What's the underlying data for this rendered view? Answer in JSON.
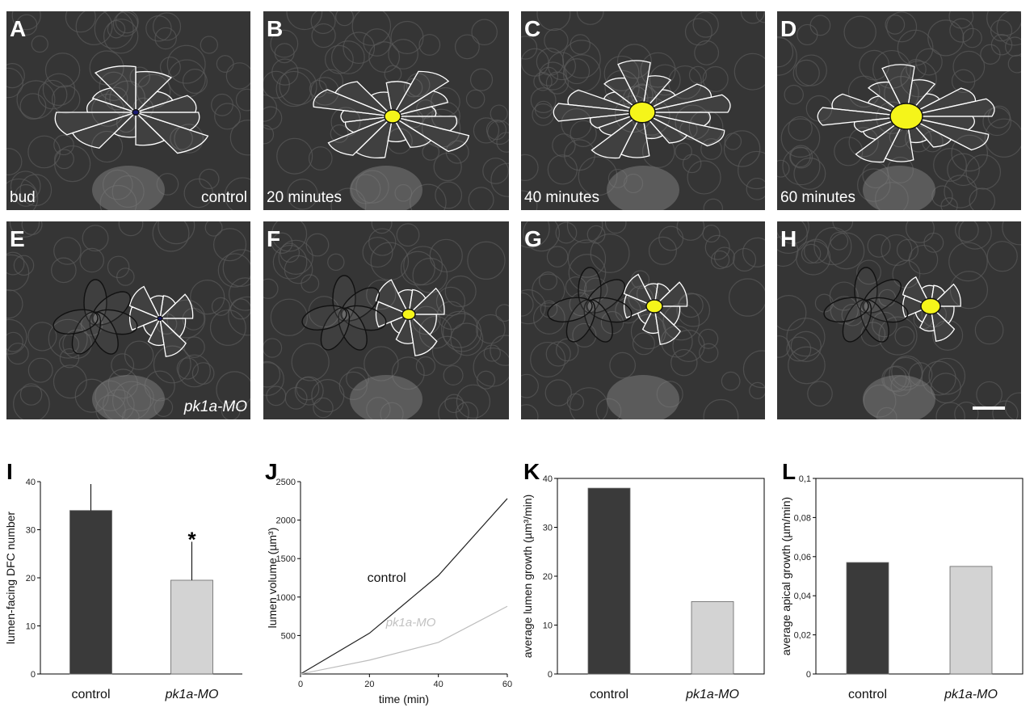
{
  "panels": [
    {
      "letter": "A",
      "captions": [
        "bud",
        "control"
      ]
    },
    {
      "letter": "B",
      "captions": [
        "20 minutes"
      ]
    },
    {
      "letter": "C",
      "captions": [
        "40 minutes"
      ]
    },
    {
      "letter": "D",
      "captions": [
        "60 minutes"
      ]
    },
    {
      "letter": "E",
      "captions": [
        "pk1a-MO"
      ]
    },
    {
      "letter": "F",
      "captions": []
    },
    {
      "letter": "G",
      "captions": []
    },
    {
      "letter": "H",
      "captions": []
    }
  ],
  "colors": {
    "lumen": "#f5f51a",
    "cell_outline": "#ffffff",
    "mo_outline": "#111111",
    "cell_number": "#e0161b",
    "control_bar": "#3a3a3a",
    "mo_bar": "#d3d3d3"
  },
  "chart_data": [
    {
      "letter": "I",
      "type": "bar",
      "categories": [
        "control",
        "pk1a-MO"
      ],
      "values": [
        34,
        19.5
      ],
      "errors": [
        5.5,
        8
      ],
      "annotation": "*",
      "ylabel": "lumen-facing DFC number",
      "ylim": [
        0,
        40
      ],
      "yticks": [
        "0",
        "10",
        "20",
        "30",
        "40"
      ]
    },
    {
      "letter": "J",
      "type": "line",
      "x": [
        0,
        20,
        40,
        60
      ],
      "series": [
        {
          "name": "control",
          "values": [
            0,
            530,
            1280,
            2280
          ]
        },
        {
          "name": "pk1a-MO",
          "values": [
            0,
            180,
            410,
            880
          ]
        }
      ],
      "xlabel": "time (min)",
      "ylabel": "lumen volume (µm³)",
      "xlim": [
        0,
        60
      ],
      "ylim": [
        0,
        2500
      ],
      "xticks": [
        "0",
        "20",
        "40",
        "60"
      ],
      "yticks": [
        "500",
        "1000",
        "1500",
        "2000",
        "2500"
      ]
    },
    {
      "letter": "K",
      "type": "bar",
      "categories": [
        "control",
        "pk1a-MO"
      ],
      "values": [
        38,
        14.8
      ],
      "ylabel": "average lumen growth (µm³/min)",
      "ylim": [
        0,
        40
      ],
      "yticks": [
        "0",
        "10",
        "20",
        "30",
        "40"
      ]
    },
    {
      "letter": "L",
      "type": "bar",
      "categories": [
        "control",
        "pk1a-MO"
      ],
      "values": [
        0.057,
        0.055
      ],
      "ylabel": "average apical growth (µm/min)",
      "ylim": [
        0,
        0.1
      ],
      "yticks": [
        "0",
        "0,02",
        "0,04",
        "0,06",
        "0,08",
        "0,1"
      ]
    }
  ]
}
